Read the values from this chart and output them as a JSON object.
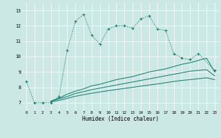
{
  "xlabel": "Humidex (Indice chaleur)",
  "bg_color": "#cce8e4",
  "line_color": "#1a7a6e",
  "grid_color": "#ffffff",
  "xlim": [
    -0.5,
    23.5
  ],
  "ylim": [
    6.5,
    13.5
  ],
  "xticks": [
    0,
    1,
    2,
    3,
    4,
    5,
    6,
    7,
    8,
    9,
    10,
    11,
    12,
    13,
    14,
    15,
    16,
    17,
    18,
    19,
    20,
    21,
    22,
    23
  ],
  "yticks": [
    7,
    8,
    9,
    10,
    11,
    12,
    13
  ],
  "line1_x": [
    0,
    1,
    2,
    3,
    4,
    5,
    6,
    7,
    8,
    9,
    10,
    11,
    12,
    13,
    14,
    15,
    16,
    17,
    18,
    19,
    20,
    21,
    23
  ],
  "line1_y": [
    8.4,
    7.0,
    7.0,
    7.0,
    7.4,
    10.4,
    12.3,
    12.75,
    11.4,
    10.8,
    11.8,
    12.0,
    12.0,
    11.85,
    12.45,
    12.65,
    11.8,
    11.7,
    10.2,
    9.9,
    9.8,
    10.2,
    9.1
  ],
  "line2_x": [
    3,
    4,
    5,
    6,
    7,
    8,
    9,
    10,
    11,
    12,
    13,
    14,
    15,
    16,
    17,
    18,
    19,
    20,
    21,
    22,
    23
  ],
  "line2_y": [
    7.1,
    7.3,
    7.55,
    7.75,
    7.9,
    8.1,
    8.2,
    8.35,
    8.5,
    8.6,
    8.7,
    8.85,
    9.0,
    9.1,
    9.2,
    9.35,
    9.5,
    9.6,
    9.75,
    9.9,
    9.0
  ],
  "line3_x": [
    3,
    4,
    5,
    6,
    7,
    8,
    9,
    10,
    11,
    12,
    13,
    14,
    15,
    16,
    17,
    18,
    19,
    20,
    21,
    22,
    23
  ],
  "line3_y": [
    7.1,
    7.25,
    7.4,
    7.6,
    7.72,
    7.85,
    7.95,
    8.05,
    8.15,
    8.25,
    8.35,
    8.45,
    8.55,
    8.65,
    8.75,
    8.85,
    8.95,
    9.05,
    9.1,
    9.15,
    8.75
  ],
  "line4_x": [
    3,
    4,
    5,
    6,
    7,
    8,
    9,
    10,
    11,
    12,
    13,
    14,
    15,
    16,
    17,
    18,
    19,
    20,
    21,
    22,
    23
  ],
  "line4_y": [
    7.05,
    7.15,
    7.28,
    7.42,
    7.52,
    7.62,
    7.7,
    7.78,
    7.86,
    7.93,
    8.0,
    8.08,
    8.15,
    8.22,
    8.3,
    8.38,
    8.45,
    8.5,
    8.56,
    8.62,
    8.5
  ]
}
